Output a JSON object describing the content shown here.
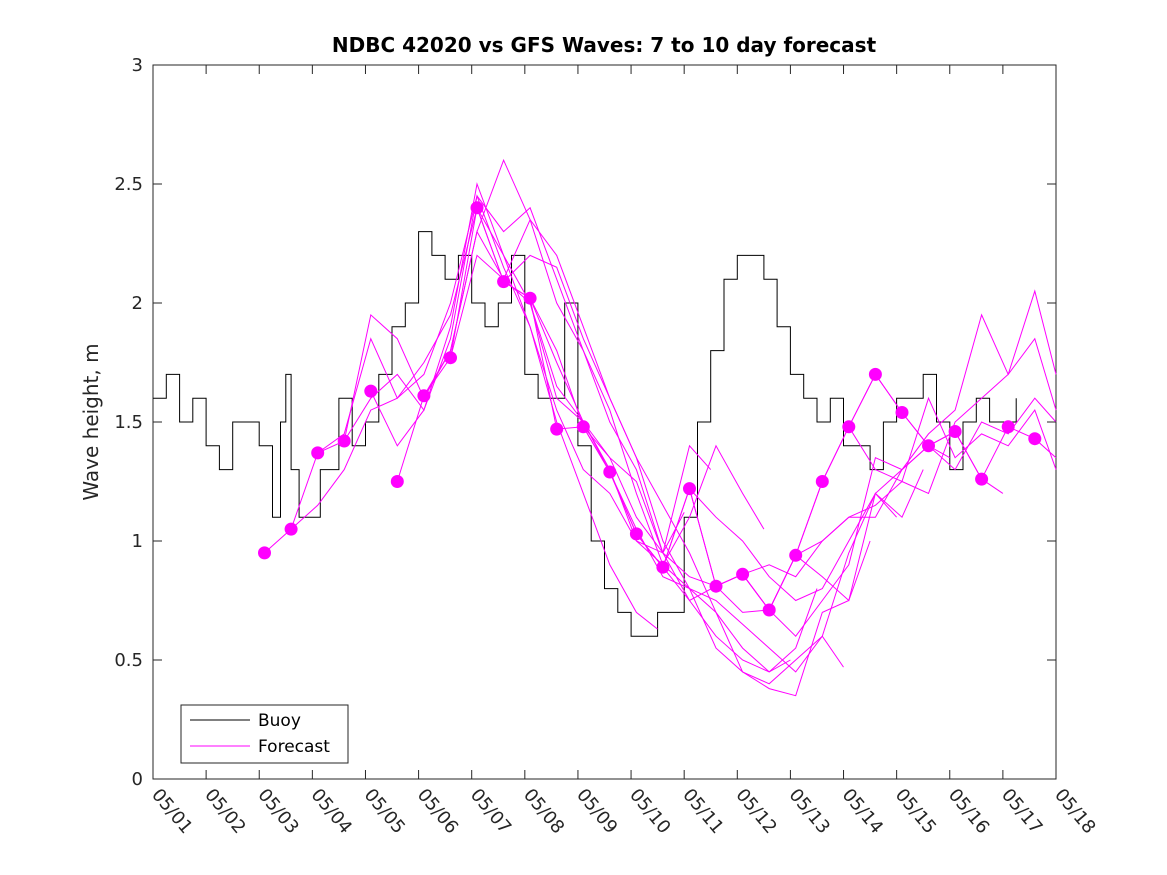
{
  "chart_data": {
    "type": "line",
    "title": "NDBC 42020 vs GFS Waves: 7 to 10 day forecast",
    "xlabel": "",
    "ylabel": "Wave height, m",
    "xlim": [
      1,
      18
    ],
    "ylim": [
      0,
      3
    ],
    "x_tick_labels": [
      "05/01",
      "05/02",
      "05/03",
      "05/04",
      "05/05",
      "05/06",
      "05/07",
      "05/08",
      "05/09",
      "05/10",
      "05/11",
      "05/12",
      "05/13",
      "05/14",
      "05/15",
      "05/16",
      "05/17",
      "05/18"
    ],
    "y_ticks": [
      0,
      0.5,
      1,
      1.5,
      2,
      2.5,
      3
    ],
    "y_tick_labels": [
      "0",
      "0.5",
      "1",
      "1.5",
      "2",
      "2.5",
      "3"
    ],
    "grid": false,
    "legend_position": "bottom-left",
    "colors": {
      "buoy": "#000000",
      "forecast": "#ff00ff"
    },
    "series": [
      {
        "name": "Buoy",
        "x": [
          1.0,
          1.25,
          1.5,
          1.75,
          2.0,
          2.25,
          2.5,
          2.75,
          3.0,
          3.25,
          3.4,
          3.5,
          3.6,
          3.75,
          3.9,
          4.0,
          4.15,
          4.25,
          4.5,
          4.75,
          5.0,
          5.25,
          5.5,
          5.75,
          6.0,
          6.25,
          6.5,
          6.75,
          7.0,
          7.25,
          7.5,
          7.75,
          8.0,
          8.25,
          8.5,
          8.75,
          9.0,
          9.25,
          9.5,
          9.75,
          10.0,
          10.25,
          10.5,
          10.75,
          11.0,
          11.25,
          11.5,
          11.75,
          12.0,
          12.25,
          12.5,
          12.75,
          13.0,
          13.25,
          13.5,
          13.75,
          14.0,
          14.25,
          14.5,
          14.75,
          15.0,
          15.25,
          15.5,
          15.75,
          16.0,
          16.25,
          16.5,
          16.75,
          17.0,
          17.25
        ],
        "values": [
          1.6,
          1.7,
          1.5,
          1.6,
          1.4,
          1.3,
          1.5,
          1.5,
          1.4,
          1.1,
          1.5,
          1.7,
          1.3,
          1.1,
          1.1,
          1.1,
          1.3,
          1.3,
          1.6,
          1.4,
          1.5,
          1.7,
          1.9,
          2.0,
          2.3,
          2.2,
          2.1,
          2.2,
          2.0,
          1.9,
          2.0,
          2.2,
          1.7,
          1.6,
          1.6,
          2.0,
          1.4,
          1.0,
          0.8,
          0.7,
          0.6,
          0.6,
          0.7,
          0.7,
          1.1,
          1.5,
          1.8,
          2.1,
          2.2,
          2.2,
          2.1,
          1.9,
          1.7,
          1.6,
          1.5,
          1.6,
          1.4,
          1.4,
          1.3,
          1.5,
          1.6,
          1.6,
          1.7,
          1.5,
          1.3,
          1.5,
          1.6,
          1.5,
          1.5,
          1.6
        ]
      },
      {
        "name": "Forecast",
        "points": [
          [
            3.1,
            0.95
          ],
          [
            3.6,
            1.05
          ],
          [
            4.1,
            1.37
          ],
          [
            4.6,
            1.42
          ],
          [
            5.1,
            1.63
          ],
          [
            5.6,
            1.25
          ],
          [
            6.1,
            1.61
          ],
          [
            6.6,
            1.77
          ],
          [
            7.1,
            2.4
          ],
          [
            7.6,
            2.09
          ],
          [
            8.1,
            2.02
          ],
          [
            8.6,
            1.47
          ],
          [
            9.1,
            1.48
          ],
          [
            9.6,
            1.29
          ],
          [
            10.1,
            1.03
          ],
          [
            10.6,
            0.89
          ],
          [
            11.1,
            1.22
          ],
          [
            11.6,
            0.81
          ],
          [
            12.1,
            0.86
          ],
          [
            12.6,
            0.71
          ],
          [
            13.1,
            0.94
          ],
          [
            13.6,
            1.25
          ],
          [
            14.1,
            1.48
          ],
          [
            14.6,
            1.7
          ],
          [
            15.1,
            1.54
          ],
          [
            15.6,
            1.4
          ],
          [
            16.1,
            1.46
          ],
          [
            16.6,
            1.26
          ],
          [
            17.1,
            1.48
          ],
          [
            17.6,
            1.43
          ]
        ],
        "runs": [
          {
            "x": [
              3.1,
              3.6,
              4.1,
              4.6,
              5.1,
              5.6,
              6.1,
              6.6,
              7.1,
              7.6,
              8.1,
              8.6,
              9.1,
              9.6,
              10.1,
              10.5
            ],
            "values": [
              0.95,
              1.05,
              1.15,
              1.3,
              1.55,
              1.6,
              1.75,
              1.95,
              2.4,
              2.2,
              1.9,
              1.5,
              1.2,
              0.9,
              0.7,
              0.63
            ]
          },
          {
            "x": [
              3.6,
              4.1,
              4.6,
              5.1,
              5.6,
              6.1,
              6.6,
              7.1,
              7.6,
              8.1,
              8.6,
              9.1,
              9.6,
              10.1,
              10.6,
              11.0
            ],
            "values": [
              1.05,
              1.37,
              1.45,
              1.85,
              1.6,
              1.7,
              2.0,
              2.45,
              2.15,
              1.9,
              1.55,
              1.3,
              1.2,
              1.0,
              0.95,
              1.12
            ]
          },
          {
            "x": [
              4.1,
              4.6,
              5.1,
              5.6,
              6.1,
              6.6,
              7.1,
              7.6,
              8.1,
              8.6,
              9.1,
              9.6,
              10.1,
              10.6,
              11.1,
              11.5
            ],
            "values": [
              1.37,
              1.42,
              1.95,
              1.85,
              1.6,
              1.8,
              2.3,
              2.1,
              2.0,
              1.65,
              1.5,
              1.35,
              1.1,
              0.95,
              1.4,
              1.3
            ]
          },
          {
            "x": [
              4.6,
              5.1,
              5.6,
              6.1,
              6.6,
              7.1,
              7.6,
              8.1,
              8.6,
              9.1,
              9.6,
              10.1,
              10.6,
              11.1,
              11.6,
              12.1,
              12.5
            ],
            "values": [
              1.42,
              1.6,
              1.7,
              1.55,
              1.9,
              2.5,
              2.2,
              2.0,
              1.6,
              1.5,
              1.3,
              1.0,
              0.9,
              1.1,
              1.4,
              1.2,
              1.05
            ]
          },
          {
            "x": [
              5.1,
              5.6,
              6.1,
              6.6,
              7.1,
              7.6,
              8.1,
              8.6,
              9.1,
              9.6,
              10.1,
              10.6,
              11.1,
              11.6,
              12.1,
              12.6,
              13.0
            ],
            "values": [
              1.63,
              1.4,
              1.55,
              1.85,
              2.45,
              2.3,
              2.4,
              2.1,
              1.8,
              1.55,
              1.2,
              0.9,
              0.8,
              0.7,
              0.55,
              0.45,
              0.5
            ]
          },
          {
            "x": [
              5.6,
              6.1,
              6.6,
              7.1,
              7.6,
              8.1,
              8.6,
              9.1,
              9.6,
              10.1,
              10.6,
              11.1,
              11.6,
              12.1,
              12.6,
              13.1,
              13.5
            ],
            "values": [
              1.25,
              1.61,
              1.8,
              2.3,
              2.6,
              2.35,
              2.0,
              1.8,
              1.5,
              1.3,
              0.95,
              0.75,
              0.6,
              0.5,
              0.45,
              0.55,
              0.8
            ]
          },
          {
            "x": [
              6.1,
              6.6,
              7.1,
              7.6,
              8.1,
              8.6,
              9.1,
              9.6,
              10.1,
              10.6,
              11.1,
              11.6,
              12.1,
              12.6,
              13.1,
              13.6,
              14.0
            ],
            "values": [
              1.61,
              1.77,
              2.2,
              2.1,
              2.35,
              2.2,
              1.9,
              1.6,
              1.35,
              1.0,
              0.8,
              0.55,
              0.45,
              0.4,
              0.5,
              0.6,
              0.47
            ]
          },
          {
            "x": [
              6.6,
              7.1,
              7.6,
              8.1,
              8.6,
              9.1,
              9.6,
              10.1,
              10.6,
              11.1,
              11.6,
              12.1,
              12.6,
              13.1,
              13.6,
              14.1,
              14.5
            ],
            "values": [
              1.77,
              2.4,
              2.09,
              2.2,
              2.15,
              1.85,
              1.6,
              1.35,
              1.15,
              0.95,
              0.7,
              0.45,
              0.38,
              0.35,
              0.7,
              0.75,
              1.0
            ]
          },
          {
            "x": [
              7.1,
              7.6,
              8.1,
              8.6,
              9.1,
              9.6,
              10.1,
              10.6,
              11.1,
              11.6,
              12.1,
              12.6,
              13.1,
              13.6,
              14.1,
              14.6,
              15.0
            ],
            "values": [
              2.4,
              2.09,
              2.02,
              1.75,
              1.5,
              1.29,
              1.05,
              0.85,
              0.8,
              0.75,
              0.65,
              0.55,
              0.45,
              0.6,
              0.95,
              1.2,
              1.1
            ]
          },
          {
            "x": [
              7.6,
              8.1,
              8.6,
              9.1,
              9.6,
              10.1,
              10.6,
              11.1,
              11.6,
              12.1,
              12.6,
              13.1,
              13.6,
              14.1,
              14.6,
              15.1,
              15.5
            ],
            "values": [
              2.09,
              2.02,
              1.47,
              1.48,
              1.29,
              1.03,
              0.89,
              0.75,
              0.81,
              0.86,
              0.71,
              0.94,
              0.85,
              0.75,
              1.2,
              1.1,
              1.3
            ]
          },
          {
            "x": [
              8.1,
              8.6,
              9.1,
              9.6,
              10.1,
              10.6,
              11.1,
              11.6,
              12.1,
              12.6,
              13.1,
              13.6,
              14.1,
              14.6,
              15.1,
              15.6,
              16.0
            ],
            "values": [
              2.02,
              1.8,
              1.48,
              1.35,
              1.25,
              0.95,
              0.85,
              0.81,
              0.7,
              0.71,
              0.6,
              0.75,
              0.9,
              1.35,
              1.3,
              1.4,
              1.35
            ]
          },
          {
            "x": [
              9.1,
              9.6,
              10.1,
              10.6,
              11.1,
              11.6,
              12.1,
              12.6,
              13.1,
              13.6,
              14.1,
              14.6,
              15.1,
              15.6,
              16.1,
              16.6,
              17.0
            ],
            "values": [
              1.48,
              1.29,
              1.03,
              0.89,
              1.22,
              0.81,
              0.86,
              0.71,
              0.94,
              1.25,
              1.48,
              1.7,
              1.54,
              1.4,
              1.46,
              1.26,
              1.2
            ]
          },
          {
            "x": [
              10.1,
              10.6,
              11.1,
              11.6,
              12.1,
              12.6,
              13.1,
              13.6,
              14.1,
              14.6,
              15.1,
              15.6,
              16.1,
              16.6,
              17.1,
              17.6,
              18.0
            ],
            "values": [
              1.03,
              0.89,
              1.22,
              0.81,
              0.86,
              0.71,
              0.94,
              1.25,
              1.48,
              1.7,
              1.54,
              1.4,
              1.46,
              1.26,
              1.48,
              1.43,
              1.35
            ]
          },
          {
            "x": [
              11.1,
              11.6,
              12.1,
              12.6,
              13.1,
              13.6,
              14.1,
              14.6,
              15.1,
              15.6,
              16.1,
              16.6,
              17.1,
              17.6,
              18.0
            ],
            "values": [
              1.22,
              1.1,
              1.0,
              0.85,
              0.75,
              0.8,
              1.0,
              1.2,
              1.3,
              1.45,
              1.55,
              1.95,
              1.7,
              1.85,
              1.55
            ]
          },
          {
            "x": [
              12.1,
              12.6,
              13.1,
              13.6,
              14.1,
              14.6,
              15.1,
              15.6,
              16.1,
              16.6,
              17.1,
              17.6,
              18.0
            ],
            "values": [
              0.86,
              0.9,
              0.85,
              1.0,
              1.1,
              1.15,
              1.25,
              1.2,
              1.5,
              1.6,
              1.7,
              2.05,
              1.7
            ]
          },
          {
            "x": [
              13.1,
              13.6,
              14.1,
              14.6,
              15.1,
              15.6,
              16.1,
              16.6,
              17.1,
              17.6,
              18.0
            ],
            "values": [
              0.94,
              1.0,
              1.1,
              1.1,
              1.3,
              1.4,
              1.3,
              1.5,
              1.45,
              1.6,
              1.5
            ]
          },
          {
            "x": [
              14.1,
              14.6,
              15.1,
              15.6,
              16.1,
              16.6,
              17.1,
              17.6,
              18.0
            ],
            "values": [
              1.48,
              1.3,
              1.25,
              1.6,
              1.35,
              1.45,
              1.4,
              1.55,
              1.3
            ]
          }
        ]
      }
    ]
  }
}
